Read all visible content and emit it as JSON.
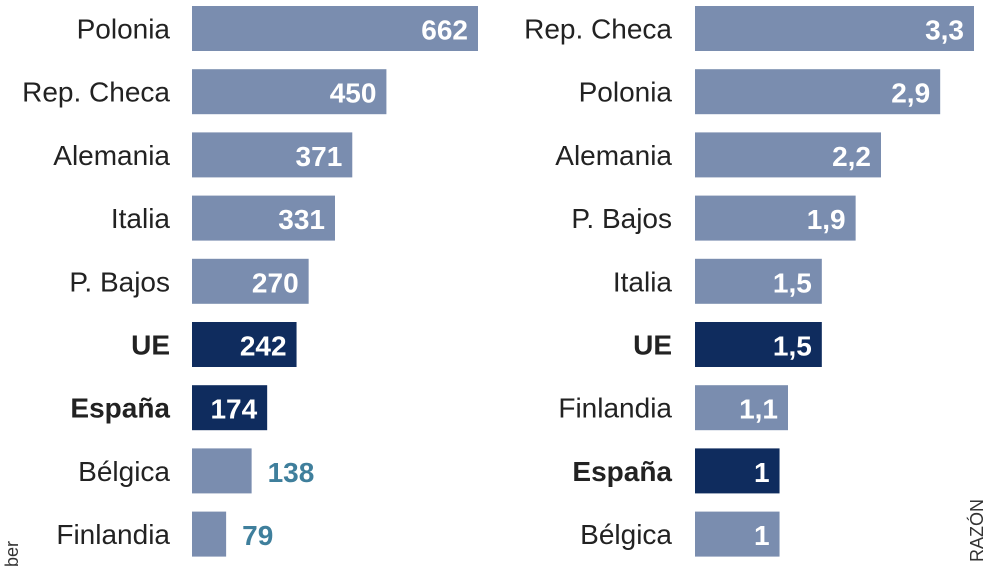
{
  "colors": {
    "regular": "#7a8daf",
    "highlight": "#0f2c5e",
    "outside_label": "#3f7f9c"
  },
  "chart_data": [
    {
      "type": "bar",
      "orientation": "horizontal",
      "categories": [
        "Polonia",
        "Rep. Checa",
        "Alemania",
        "Italia",
        "P. Bajos",
        "UE",
        "España",
        "Bélgica",
        "Finlandia"
      ],
      "values": [
        662,
        450,
        371,
        331,
        270,
        242,
        174,
        138,
        79
      ],
      "labels": [
        "662",
        "450",
        "371",
        "331",
        "270",
        "242",
        "174",
        "138",
        "79"
      ],
      "highlight": [
        "UE",
        "España"
      ],
      "xlim": [
        0,
        662
      ]
    },
    {
      "type": "bar",
      "orientation": "horizontal",
      "categories": [
        "Rep. Checa",
        "Polonia",
        "Alemania",
        "P. Bajos",
        "Italia",
        "UE",
        "Finlandia",
        "España",
        "Bélgica"
      ],
      "values": [
        3.3,
        2.9,
        2.2,
        1.9,
        1.5,
        1.5,
        1.1,
        1,
        1
      ],
      "labels": [
        "3,3",
        "2,9",
        "2,2",
        "1,9",
        "1,5",
        "1,5",
        "1,1",
        "1",
        "1"
      ],
      "highlight": [
        "UE",
        "España"
      ],
      "xlim": [
        0,
        3.3
      ]
    }
  ],
  "credits": {
    "left_fragment": "ber",
    "right": "RAZÓN"
  }
}
